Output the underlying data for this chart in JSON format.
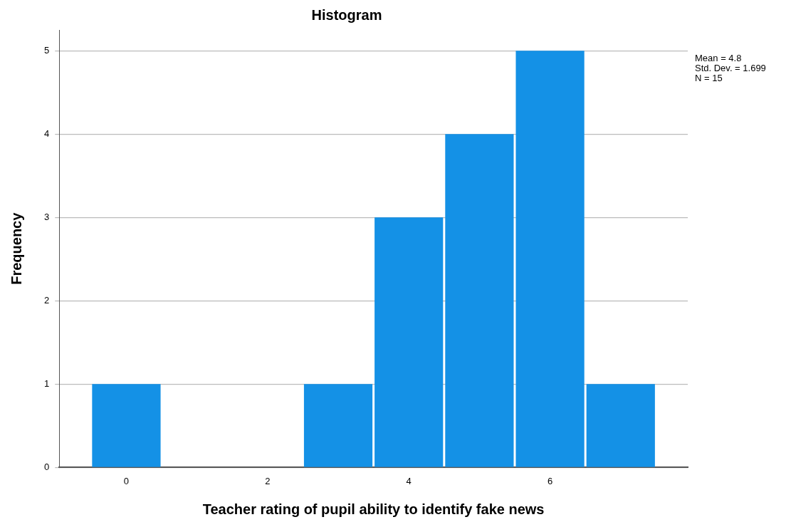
{
  "chart_data": {
    "type": "histogram",
    "title": "Histogram",
    "xlabel": "Teacher rating of pupil ability to identify fake news",
    "ylabel": "Frequency",
    "bins": [
      -0.5,
      0.5,
      1.5,
      2.5,
      3.5,
      4.5,
      5.5,
      6.5,
      7.5
    ],
    "values": [
      1,
      0,
      0,
      1,
      3,
      4,
      5,
      1
    ],
    "color": "#1491e6",
    "xlim": [
      -0.95,
      7.95
    ],
    "xticks": [
      0,
      2,
      4,
      6
    ],
    "ylim": [
      0,
      5.25
    ],
    "yticks": [
      0,
      1,
      2,
      3,
      4,
      5
    ],
    "grid": "y",
    "annotations": [
      "Mean = 4.8",
      "Std. Dev. = 1.699",
      "N = 15"
    ]
  }
}
